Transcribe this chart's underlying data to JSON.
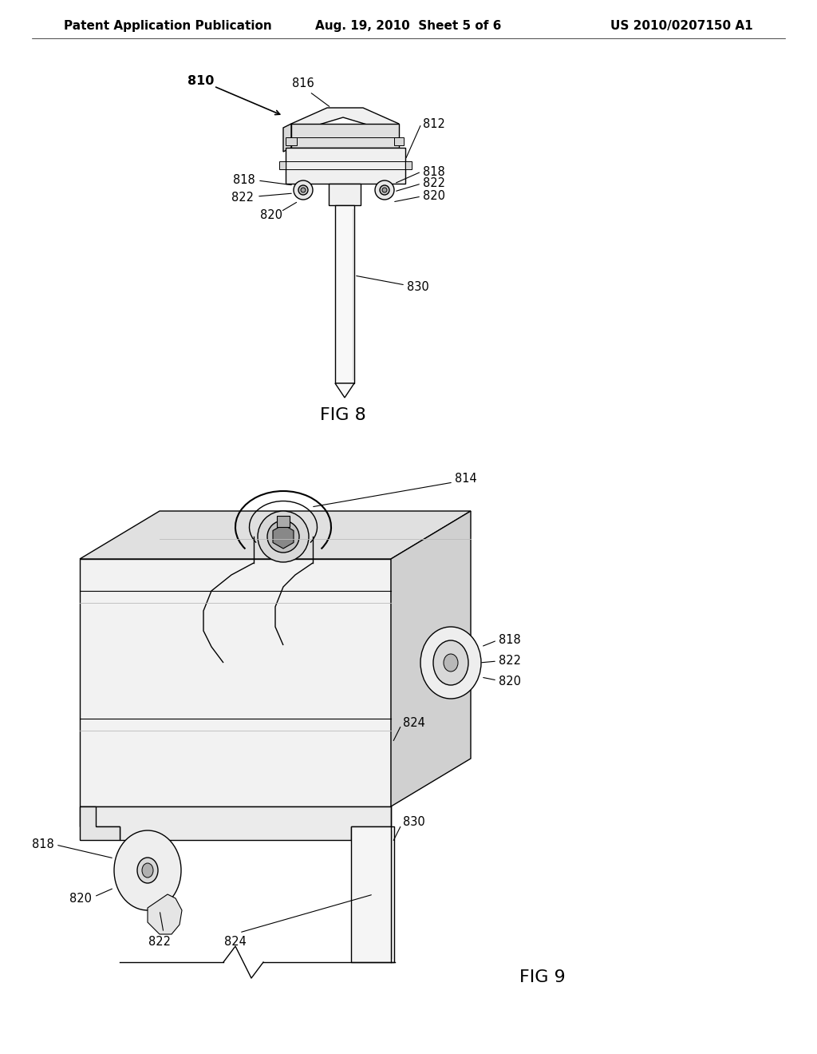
{
  "background_color": "#ffffff",
  "header_left": "Patent Application Publication",
  "header_center": "Aug. 19, 2010  Sheet 5 of 6",
  "header_right": "US 2010/0207150 A1",
  "header_fontsize": 11,
  "fig8_label": "FIG 8",
  "fig9_label": "FIG 9",
  "line_color": "#000000",
  "line_width": 1.0,
  "annotation_fontsize": 10.5,
  "shade_light": "#f0f0f0",
  "shade_mid": "#d8d8d8",
  "shade_dark": "#b8b8b8",
  "shade_darker": "#a0a0a0"
}
